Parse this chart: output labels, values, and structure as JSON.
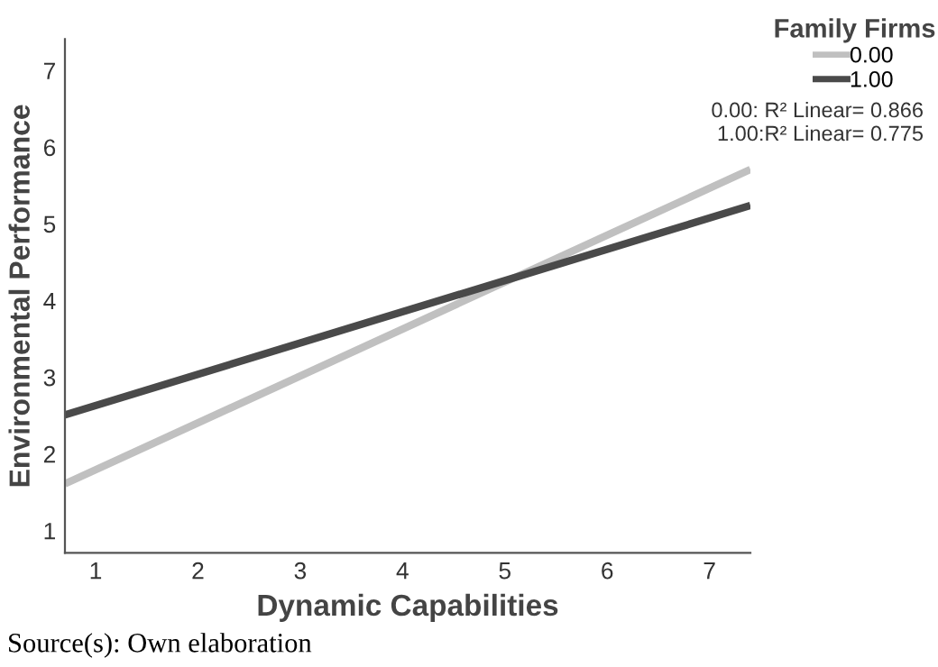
{
  "chart_data": {
    "type": "line",
    "xlabel": "Dynamic Capabilities",
    "ylabel": "Environmental Performance",
    "legend_title": "Family Firms",
    "xlim": [
      0.7,
      7.4
    ],
    "ylim": [
      0.71,
      7.41
    ],
    "xticks": [
      1,
      2,
      3,
      4,
      5,
      6,
      7
    ],
    "yticks": [
      1,
      2,
      3,
      4,
      5,
      6,
      7
    ],
    "grid": false,
    "legend": "top right",
    "marker": "none",
    "line_style": "solid",
    "series": [
      {
        "name": "0.00",
        "color": "#c0c0c0",
        "values": [
          1.61,
          5.71
        ]
      },
      {
        "name": "1.00",
        "color": "#4a4a4a",
        "values": [
          2.51,
          5.24
        ]
      }
    ],
    "x": [
      0.7,
      7.4
    ],
    "annotations": [
      "0.00: R² Linear= 0.866",
      "1.00:R² Linear= 0.775",
      "Source(s): Own elaboration"
    ]
  }
}
